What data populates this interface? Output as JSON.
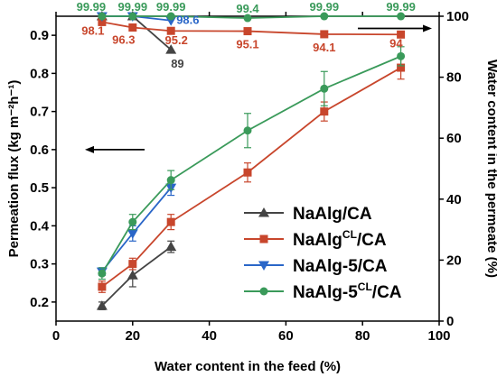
{
  "chart_data": {
    "type": "line",
    "xlabel": "Water content in the feed (%)",
    "ylabel_left": "Permeation flux (kg m⁻²h⁻¹)",
    "ylabel_right": "Water content in the permeate (%)",
    "xlim": [
      0,
      100
    ],
    "ylim_left": [
      0.15,
      0.95
    ],
    "ylim_right": [
      0,
      100
    ],
    "x_ticks": [
      "0",
      "20",
      "40",
      "60",
      "80",
      "100"
    ],
    "y_ticks_left": [
      "0.2",
      "0.3",
      "0.4",
      "0.5",
      "0.6",
      "0.7",
      "0.8",
      "0.9"
    ],
    "y_ticks_right": [
      "0",
      "20",
      "40",
      "60",
      "80",
      "100"
    ],
    "grid": false,
    "legend_position": "bottom-right",
    "series": [
      {
        "name": "NaAlg/CA",
        "name_main": "NaAlg",
        "name_sup": "",
        "name_tail": "/CA",
        "color": "#444444",
        "marker": "triangle-up",
        "flux": {
          "x": [
            12,
            20,
            30
          ],
          "y": [
            0.19,
            0.27,
            0.345
          ],
          "err": [
            0.01,
            0.03,
            0.015
          ]
        },
        "water": {
          "x": [
            12,
            20,
            30
          ],
          "y": [
            99.99,
            99.99,
            89.0
          ],
          "labels": [
            "99.99",
            "99.99",
            "89"
          ]
        }
      },
      {
        "name": "NaAlgCL/CA",
        "name_main": "NaAlg",
        "name_sup": "CL",
        "name_tail": "/CA",
        "color": "#c8462c",
        "marker": "square",
        "flux": {
          "x": [
            12,
            20,
            30,
            50,
            70,
            90
          ],
          "y": [
            0.24,
            0.3,
            0.41,
            0.54,
            0.7,
            0.815
          ],
          "err": [
            0.015,
            0.015,
            0.02,
            0.025,
            0.025,
            0.03
          ]
        },
        "water": {
          "x": [
            12,
            20,
            30,
            50,
            70,
            90
          ],
          "y": [
            98.1,
            96.3,
            95.2,
            95.1,
            94.1,
            94.0
          ],
          "labels": [
            "98.1",
            "96.3",
            "95.2",
            "95.1",
            "94.1",
            "94"
          ]
        }
      },
      {
        "name": "NaAlg-5/CA",
        "name_main": "NaAlg-5",
        "name_sup": "",
        "name_tail": "/CA",
        "color": "#2a66c8",
        "marker": "triangle-down",
        "flux": {
          "x": [
            12,
            20,
            30
          ],
          "y": [
            0.28,
            0.38,
            0.5
          ],
          "err": [
            0.01,
            0.02,
            0.02
          ]
        },
        "water": {
          "x": [
            12,
            20,
            30
          ],
          "y": [
            99.99,
            99.99,
            98.6
          ],
          "labels": [
            "99.99",
            "99.99",
            "98.6"
          ]
        }
      },
      {
        "name": "NaAlg-5CL/CA",
        "name_main": "NaAlg-5",
        "name_sup": "CL",
        "name_tail": "/CA",
        "color": "#3a9a5a",
        "marker": "circle",
        "flux": {
          "x": [
            12,
            20,
            30,
            50,
            70,
            90
          ],
          "y": [
            0.275,
            0.41,
            0.52,
            0.65,
            0.76,
            0.845
          ],
          "err": [
            0.015,
            0.02,
            0.025,
            0.045,
            0.045,
            0.025
          ]
        },
        "water": {
          "x": [
            12,
            20,
            30,
            50,
            70,
            90
          ],
          "y": [
            99.99,
            99.99,
            99.99,
            99.4,
            99.99,
            99.99
          ],
          "labels": [
            "99.99",
            "99.99",
            "99.99",
            "99.4",
            "99.99",
            "99.99"
          ]
        }
      }
    ]
  }
}
